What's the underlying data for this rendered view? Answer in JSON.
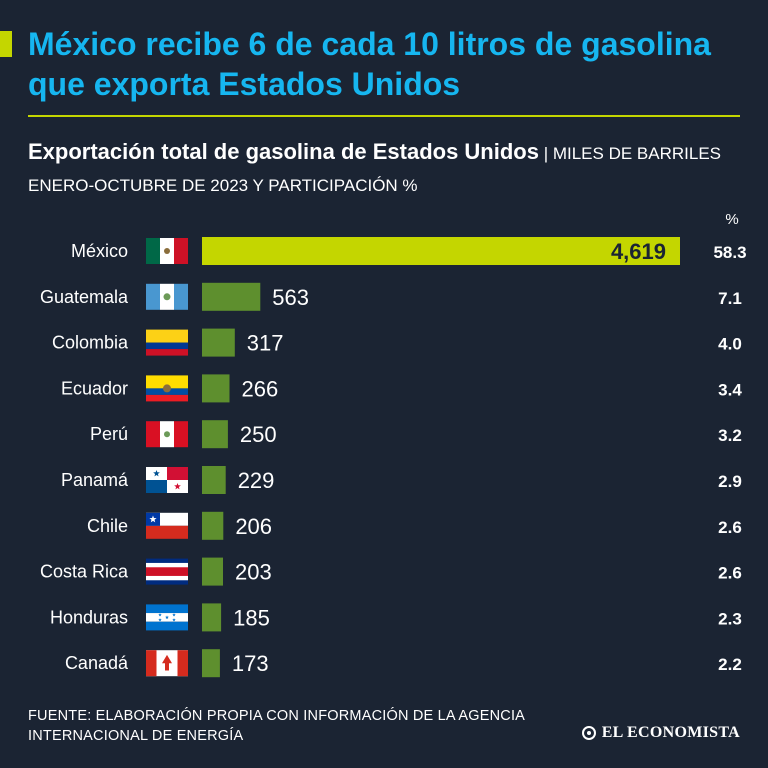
{
  "title": "México recibe 6 de cada 10 litros de gasolina que exporta Estados Unidos",
  "subtitle_bold": "Exportación total de gasolina de Estados Unidos",
  "subtitle_rest": " | MILES DE BARRILES ENERO-OCTUBRE DE 2023 Y PARTICIPACIÓN %",
  "pct_header": "%",
  "source": "FUENTE: ELABORACIÓN PROPIA CON INFORMACIÓN DE LA AGENCIA INTERNACIONAL DE ENERGÍA",
  "brand": "EL ECONOMISTA",
  "colors": {
    "background": "#1b2433",
    "title": "#16b6f0",
    "highlight_bar": "#c4d600",
    "bar": "#5e8f2e",
    "text": "#ffffff"
  },
  "chart_data": {
    "type": "bar",
    "orientation": "horizontal",
    "categories": [
      "México",
      "Guatemala",
      "Colombia",
      "Ecuador",
      "Perú",
      "Panamá",
      "Chile",
      "Costa Rica",
      "Honduras",
      "Canadá"
    ],
    "values": [
      4619,
      563,
      317,
      266,
      250,
      229,
      206,
      203,
      185,
      173
    ],
    "value_labels": [
      "4,619",
      "563",
      "317",
      "266",
      "250",
      "229",
      "206",
      "203",
      "185",
      "173"
    ],
    "share_percent": [
      "58.3",
      "7.1",
      "4.0",
      "3.4",
      "3.2",
      "2.9",
      "2.6",
      "2.6",
      "2.3",
      "2.2"
    ],
    "flags": [
      "mexico-flag-icon",
      "guatemala-flag-icon",
      "colombia-flag-icon",
      "ecuador-flag-icon",
      "peru-flag-icon",
      "panama-flag-icon",
      "chile-flag-icon",
      "costa-rica-flag-icon",
      "honduras-flag-icon",
      "canada-flag-icon"
    ],
    "highlight_index": 0
  }
}
